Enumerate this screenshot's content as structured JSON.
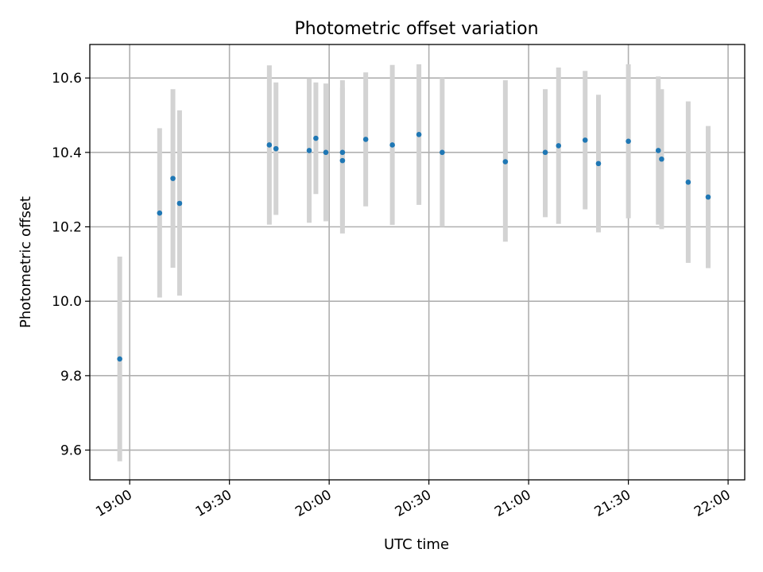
{
  "chart_data": {
    "type": "scatter",
    "title": "Photometric offset variation",
    "xlabel": "UTC time",
    "ylabel": "Photometric offset",
    "x_axis_type": "time",
    "xlim": [
      "18:48",
      "22:05"
    ],
    "ylim": [
      9.52,
      10.69
    ],
    "x_ticks": [
      {
        "value": "19:00",
        "label": "19:00"
      },
      {
        "value": "19:30",
        "label": "19:30"
      },
      {
        "value": "20:00",
        "label": "20:00"
      },
      {
        "value": "20:30",
        "label": "20:30"
      },
      {
        "value": "21:00",
        "label": "21:00"
      },
      {
        "value": "21:30",
        "label": "21:30"
      },
      {
        "value": "22:00",
        "label": "22:00"
      }
    ],
    "y_ticks": [
      {
        "value": 9.6,
        "label": "9.6"
      },
      {
        "value": 9.8,
        "label": "9.8"
      },
      {
        "value": 10.0,
        "label": "10.0"
      },
      {
        "value": 10.2,
        "label": "10.2"
      },
      {
        "value": 10.4,
        "label": "10.4"
      },
      {
        "value": 10.6,
        "label": "10.6"
      }
    ],
    "grid": true,
    "legend": "none",
    "marker_color": "#1f77b4",
    "errorbar_color": "#d3d3d3",
    "points": [
      {
        "time": "18:57",
        "y": 9.845,
        "err_low": 9.57,
        "err_high": 10.12
      },
      {
        "time": "19:09",
        "y": 10.237,
        "err_low": 10.01,
        "err_high": 10.465
      },
      {
        "time": "19:13",
        "y": 10.33,
        "err_low": 10.09,
        "err_high": 10.57
      },
      {
        "time": "19:15",
        "y": 10.263,
        "err_low": 10.015,
        "err_high": 10.513
      },
      {
        "time": "19:42",
        "y": 10.42,
        "err_low": 10.206,
        "err_high": 10.634
      },
      {
        "time": "19:44",
        "y": 10.41,
        "err_low": 10.232,
        "err_high": 10.588
      },
      {
        "time": "19:54",
        "y": 10.405,
        "err_low": 10.211,
        "err_high": 10.599
      },
      {
        "time": "19:56",
        "y": 10.438,
        "err_low": 10.288,
        "err_high": 10.588
      },
      {
        "time": "19:59",
        "y": 10.4,
        "err_low": 10.215,
        "err_high": 10.585
      },
      {
        "time": "20:04",
        "y": 10.378,
        "err_low": 10.182,
        "err_high": 10.574
      },
      {
        "time": "20:04",
        "y": 10.4,
        "err_low": 10.206,
        "err_high": 10.594
      },
      {
        "time": "20:11",
        "y": 10.435,
        "err_low": 10.255,
        "err_high": 10.615
      },
      {
        "time": "20:19",
        "y": 10.42,
        "err_low": 10.205,
        "err_high": 10.635
      },
      {
        "time": "20:27",
        "y": 10.448,
        "err_low": 10.259,
        "err_high": 10.637
      },
      {
        "time": "20:34",
        "y": 10.4,
        "err_low": 10.2,
        "err_high": 10.6
      },
      {
        "time": "20:53",
        "y": 10.375,
        "err_low": 10.16,
        "err_high": 10.594
      },
      {
        "time": "21:05",
        "y": 10.4,
        "err_low": 10.226,
        "err_high": 10.57
      },
      {
        "time": "21:09",
        "y": 10.418,
        "err_low": 10.208,
        "err_high": 10.628
      },
      {
        "time": "21:17",
        "y": 10.433,
        "err_low": 10.247,
        "err_high": 10.619
      },
      {
        "time": "21:21",
        "y": 10.37,
        "err_low": 10.185,
        "err_high": 10.555
      },
      {
        "time": "21:30",
        "y": 10.43,
        "err_low": 10.223,
        "err_high": 10.637
      },
      {
        "time": "21:39",
        "y": 10.405,
        "err_low": 10.206,
        "err_high": 10.604
      },
      {
        "time": "21:40",
        "y": 10.382,
        "err_low": 10.194,
        "err_high": 10.57
      },
      {
        "time": "21:48",
        "y": 10.32,
        "err_low": 10.103,
        "err_high": 10.537
      },
      {
        "time": "21:54",
        "y": 10.28,
        "err_low": 10.089,
        "err_high": 10.471
      }
    ]
  }
}
